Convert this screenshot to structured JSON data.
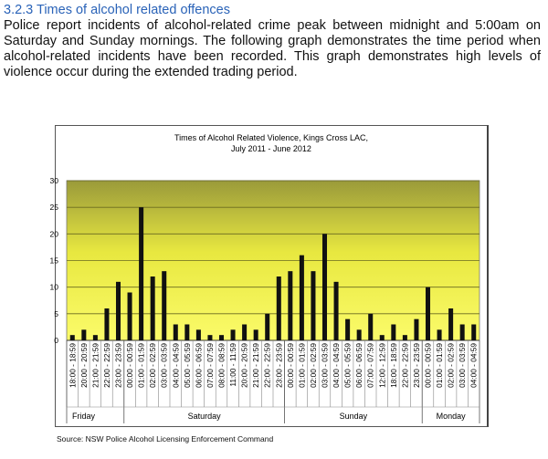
{
  "heading": "3.2.3  Times of alcohol related offences",
  "paragraph": "Police report incidents of alcohol-related crime peak between midnight and 5:00am on Saturday and Sunday mornings. The following graph demonstrates the time period when alcohol-related incidents have been recorded. This graph demonstrates high levels of violence occur during the extended trading period.",
  "source": "Source: NSW Police Alcohol Licensing Enforcement Command",
  "chart_data": {
    "type": "bar",
    "title": "Times of Alcohol Related Violence, Kings Cross LAC,",
    "subtitle": "July 2011 - June 2012",
    "ylim": [
      0,
      30
    ],
    "yticks": [
      0,
      5,
      10,
      15,
      20,
      25,
      30
    ],
    "grid": true,
    "bar_color": "#111111",
    "groups": [
      {
        "day": "Friday",
        "categories": [
          "18:00 - 18:59",
          "20:00 - 20:59",
          "21:00 - 21:59",
          "22:00 - 22:59",
          "23:00 - 23:59"
        ],
        "values": [
          1,
          2,
          1,
          6,
          11
        ]
      },
      {
        "day": "Saturday",
        "categories": [
          "00:00 - 00:59",
          "01:00 - 01:59",
          "02:00 - 02:59",
          "03:00 - 03:59",
          "04:00 - 04:59",
          "05:00 - 05:59",
          "06:00 - 06:59",
          "07:00 - 07:59",
          "08:00 - 08:59",
          "11:00 - 11:59",
          "20:00 - 20:59",
          "21:00 - 21:59",
          "22:00 - 22:59",
          "23:00 - 23:59"
        ],
        "values": [
          9,
          25,
          12,
          13,
          3,
          3,
          2,
          1,
          1,
          2,
          3,
          2,
          5,
          12
        ]
      },
      {
        "day": "Sunday",
        "categories": [
          "00:00 - 00:59",
          "01:00 - 01:59",
          "02:00 - 02:59",
          "03:00 - 03:59",
          "04:00 - 04:59",
          "05:00 - 05:59",
          "06:00 - 06:59",
          "07:00 - 07:59",
          "12:00 - 12:59",
          "18:00 - 18:59",
          "22:00 - 22:59",
          "23:00 - 23:59"
        ],
        "values": [
          13,
          16,
          13,
          20,
          11,
          4,
          2,
          5,
          1,
          3,
          1,
          4
        ]
      },
      {
        "day": "Monday",
        "categories": [
          "00:00 - 00:59",
          "01:00 - 01:59",
          "02:00 - 02:59",
          "03:00 - 03:59",
          "04:00 - 04:59"
        ],
        "values": [
          10,
          2,
          6,
          3,
          3
        ]
      }
    ]
  }
}
